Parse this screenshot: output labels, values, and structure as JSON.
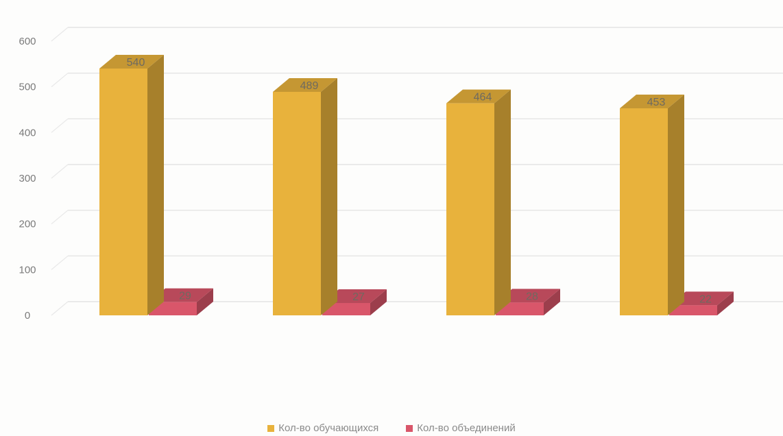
{
  "chart_data": {
    "type": "bar",
    "categories": [
      "",
      "",
      "",
      ""
    ],
    "series": [
      {
        "name": "Кол-во обучающихся",
        "values": [
          540,
          489,
          464,
          453
        ],
        "color": "#e8b23c"
      },
      {
        "name": "Кол-во объединений",
        "values": [
          29,
          27,
          28,
          22
        ],
        "color": "#d9566a"
      }
    ],
    "ylim": [
      0,
      600
    ],
    "yticks": [
      "0",
      "100",
      "200",
      "300",
      "400",
      "500",
      "600"
    ],
    "grid": true,
    "legend_position": "bottom-center",
    "style": "3d-column"
  }
}
